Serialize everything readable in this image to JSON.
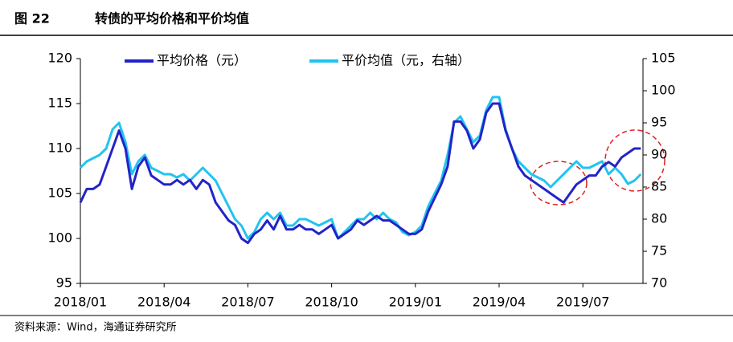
{
  "chart_data": {
    "type": "line",
    "title_number": "图 22",
    "title": "转债的平均价格和平价均值",
    "source": "资料来源：Wind，海通证券研究所",
    "categories": [
      "2018/01",
      null,
      null,
      null,
      null,
      null,
      null,
      null,
      null,
      null,
      null,
      null,
      null,
      "2018/04",
      null,
      null,
      null,
      null,
      null,
      null,
      null,
      null,
      null,
      null,
      null,
      null,
      "2018/07",
      null,
      null,
      null,
      null,
      null,
      null,
      null,
      null,
      null,
      null,
      null,
      null,
      "2018/10",
      null,
      null,
      null,
      null,
      null,
      null,
      null,
      null,
      null,
      null,
      null,
      null,
      "2019/01",
      null,
      null,
      null,
      null,
      null,
      null,
      null,
      null,
      null,
      null,
      null,
      null,
      "2019/04",
      null,
      null,
      null,
      null,
      null,
      null,
      null,
      null,
      null,
      null,
      null,
      null,
      "2019/07",
      null,
      null,
      null,
      null,
      null,
      null,
      null,
      null,
      null
    ],
    "series": [
      {
        "name": "平均价格（元）",
        "color": "#2323c8",
        "axis": "y",
        "values": [
          104,
          105.5,
          105.5,
          106,
          108,
          110,
          112,
          110,
          105.5,
          108,
          109,
          107,
          106.5,
          106,
          106,
          106.5,
          106,
          106.5,
          105.5,
          106.5,
          106,
          104,
          103,
          102,
          101.5,
          100,
          99.5,
          100.5,
          101,
          102,
          101,
          102.5,
          101,
          101,
          101.5,
          101,
          101,
          100.5,
          101,
          101.5,
          100,
          100.5,
          101,
          102,
          101.5,
          102,
          102.5,
          102,
          102,
          101.5,
          101,
          100.5,
          100.5,
          101,
          103,
          104.5,
          106,
          108,
          113,
          113,
          112,
          110,
          111,
          114,
          115,
          115,
          112,
          110,
          108,
          107,
          106.5,
          106,
          105.5,
          105,
          104.5,
          104,
          105,
          106,
          106.5,
          107,
          107,
          108,
          108.5,
          108,
          109,
          109.5,
          110,
          110
        ]
      },
      {
        "name": "平价均值（元，右轴）",
        "color": "#22c3f0",
        "axis": "y2",
        "values": [
          88,
          89,
          89.5,
          90,
          91,
          94,
          95,
          92,
          87,
          89,
          90,
          88,
          87.5,
          87,
          87,
          86.5,
          87,
          86,
          87,
          88,
          87,
          86,
          84,
          82,
          80,
          79,
          77,
          78,
          80,
          81,
          80,
          81,
          79,
          79,
          80,
          80,
          79.5,
          79,
          79.5,
          80,
          77,
          78,
          79,
          80,
          80,
          81,
          80,
          81,
          80,
          79.5,
          78,
          77.5,
          78,
          79,
          82,
          84,
          86,
          90,
          95,
          96,
          94,
          92,
          93,
          97,
          99,
          99,
          94,
          91,
          89,
          88,
          87,
          86.5,
          86,
          85,
          86,
          87,
          88,
          89,
          88,
          88,
          88.5,
          89,
          87,
          88,
          87,
          85.5,
          86,
          87
        ]
      }
    ],
    "ylim": [
      95,
      120
    ],
    "yticks": [
      95,
      100,
      105,
      110,
      115,
      120
    ],
    "y2lim": [
      70,
      105
    ],
    "y2ticks": [
      70,
      75,
      80,
      85,
      90,
      95,
      100,
      105
    ]
  }
}
